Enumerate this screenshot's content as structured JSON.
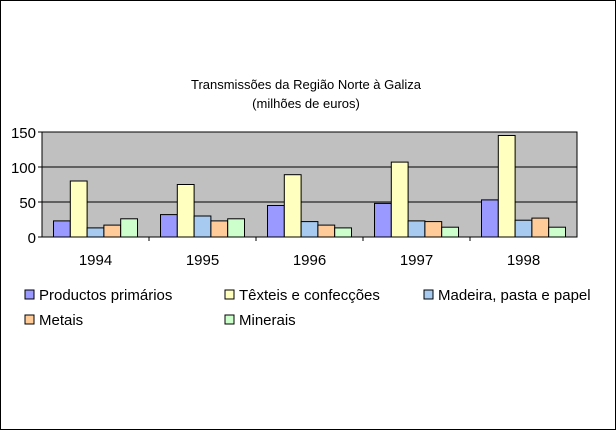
{
  "chart_data": {
    "type": "bar",
    "title": "Transmissões da Região Norte à Galiza",
    "subtitle": "(milhões de euros)",
    "categories": [
      "1994",
      "1995",
      "1996",
      "1997",
      "1998"
    ],
    "ylim": [
      0,
      150
    ],
    "yticks": [
      0,
      50,
      100,
      150
    ],
    "grid": true,
    "legend_position": "bottom",
    "series": [
      {
        "name": "Productos primários",
        "color": "#9999ff",
        "values": [
          23,
          32,
          45,
          48,
          53
        ]
      },
      {
        "name": "Têxteis e confecções",
        "color": "#ffffc0",
        "values": [
          80,
          75,
          89,
          107,
          145
        ]
      },
      {
        "name": "Madeira, pasta e papel",
        "color": "#a6caf0",
        "values": [
          13,
          30,
          22,
          23,
          24
        ]
      },
      {
        "name": "Metais",
        "color": "#ffcc99",
        "values": [
          17,
          23,
          17,
          22,
          27
        ]
      },
      {
        "name": "Minerais",
        "color": "#ccffcc",
        "values": [
          26,
          26,
          13,
          14,
          14
        ]
      }
    ]
  },
  "colors": {
    "plot_background": "#c0c0c0",
    "gridline": "#000000",
    "outline": "#000000"
  }
}
